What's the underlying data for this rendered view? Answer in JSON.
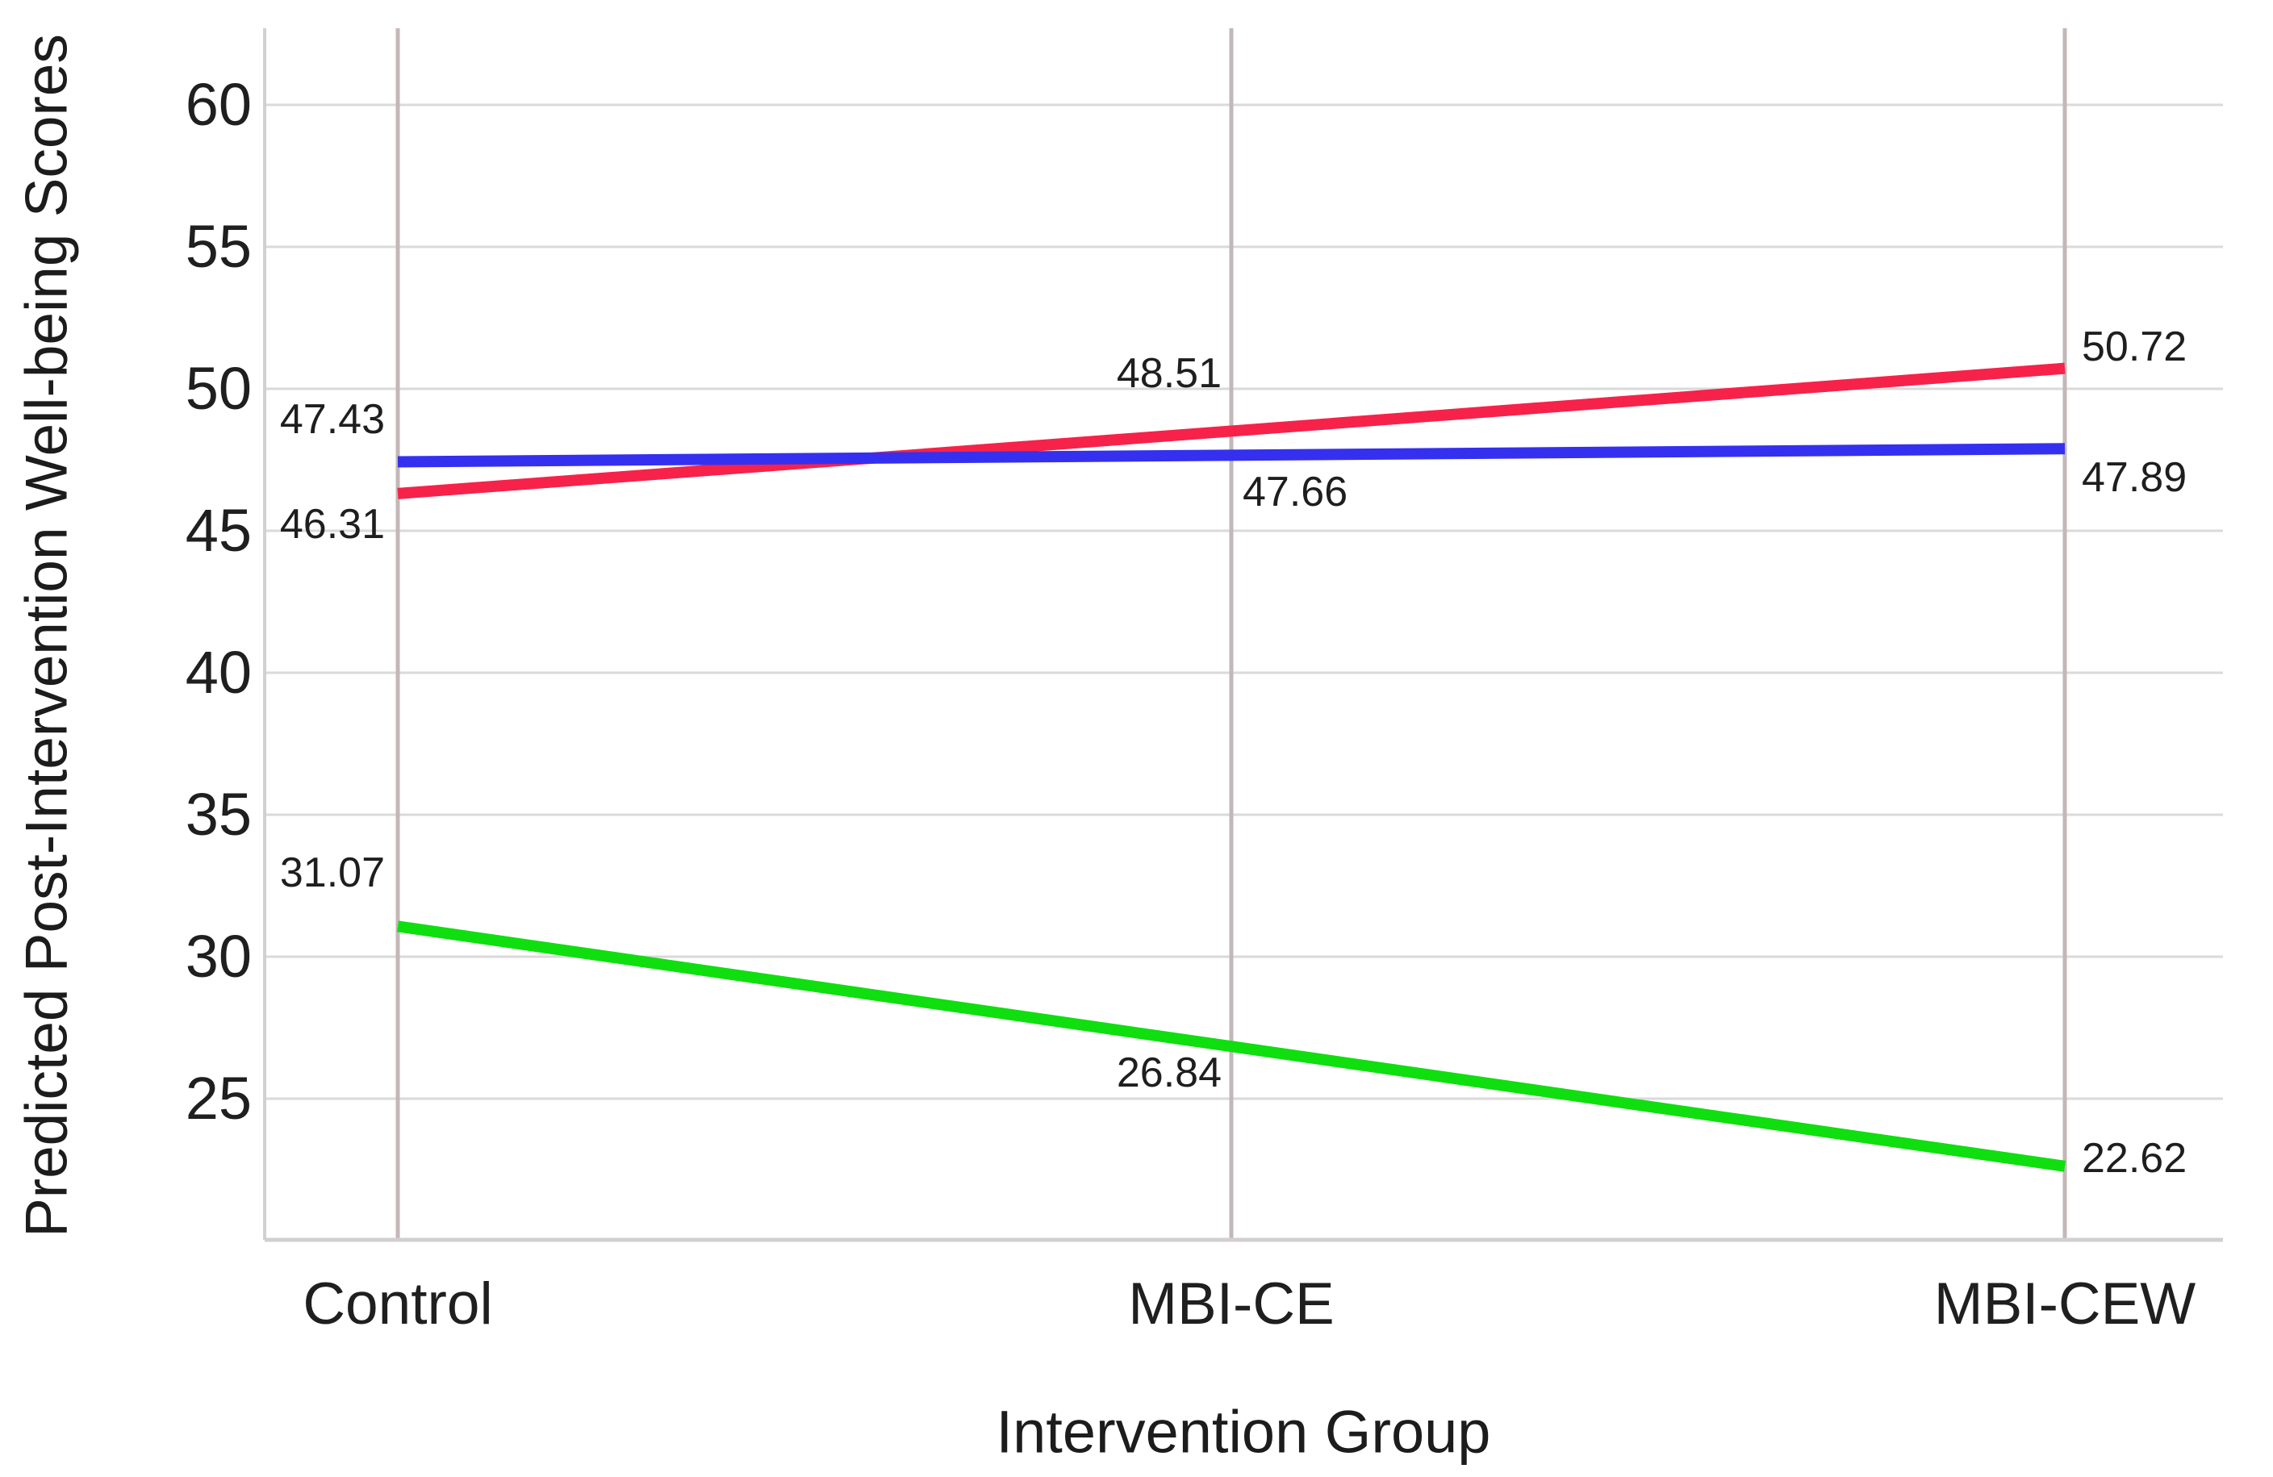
{
  "chart_data": {
    "type": "line",
    "title": "",
    "xlabel": "Intervention Group",
    "ylabel": "Predicted Post-Intervention Well-being Scores",
    "categories": [
      "Control",
      "MBI-CE",
      "MBI-CEW"
    ],
    "yticks": [
      25,
      30,
      35,
      40,
      45,
      50,
      55,
      60
    ],
    "ylim": [
      20,
      62.7
    ],
    "grid": true,
    "legend_position": "none",
    "series": [
      {
        "name": "green-declining-series",
        "color": "#0FDE0F",
        "values": [
          31.07,
          26.84,
          22.62
        ],
        "labels": [
          "31.07",
          "26.84",
          "22.62"
        ]
      },
      {
        "name": "red-rising-series",
        "color": "#F6224A",
        "values": [
          46.31,
          48.51,
          50.72
        ],
        "labels": [
          "46.31",
          "48.51",
          "50.72"
        ]
      },
      {
        "name": "blue-flat-series",
        "color": "#3530EF",
        "values": [
          47.43,
          47.66,
          47.89
        ],
        "labels": [
          "47.43",
          "47.66",
          "47.89"
        ]
      }
    ],
    "colors": {
      "horizontal_gridline": "#DADADA",
      "vertical_gridline": "#C3B7B7",
      "axis_border": "#D2CFCF",
      "label_text": "#1C1C1C",
      "background": "#FFFFFF"
    }
  }
}
